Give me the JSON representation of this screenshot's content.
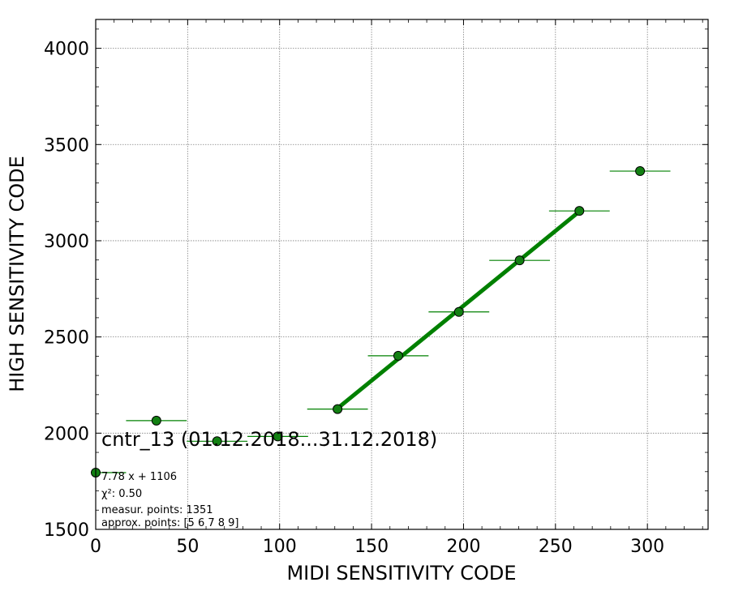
{
  "chart_data": {
    "type": "scatter",
    "title": "cntr_13 (01.12.2018...31.12.2018)",
    "xlabel": "MIDI SENSITIVITY CODE",
    "ylabel": "HIGH SENSITIVITY CODE",
    "xlim": [
      0,
      333
    ],
    "ylim": [
      1500,
      4150
    ],
    "xticks": [
      0,
      50,
      100,
      150,
      200,
      250,
      300
    ],
    "yticks": [
      1500,
      2000,
      2500,
      3000,
      3500,
      4000
    ],
    "grid": true,
    "points": [
      {
        "x": 0,
        "y": 1795,
        "xerr": 16.5
      },
      {
        "x": 33,
        "y": 2065,
        "xerr": 16.5
      },
      {
        "x": 66,
        "y": 1958,
        "xerr": 16.5
      },
      {
        "x": 99,
        "y": 1983,
        "xerr": 16.5
      },
      {
        "x": 131.5,
        "y": 2125,
        "xerr": 16.5
      },
      {
        "x": 164.5,
        "y": 2402,
        "xerr": 16.5
      },
      {
        "x": 197.5,
        "y": 2630,
        "xerr": 16.5
      },
      {
        "x": 230.5,
        "y": 2898,
        "xerr": 16.5
      },
      {
        "x": 263,
        "y": 3155,
        "xerr": 16.5
      },
      {
        "x": 296,
        "y": 3362,
        "xerr": 16.5
      }
    ],
    "fit": {
      "slope": 7.78,
      "intercept": 1106,
      "x_range": [
        131.5,
        263
      ]
    },
    "annotations": [
      "7.78 x + 1106",
      "χ²: 0.50",
      "measur. points: 1351",
      "approx. points: [5 6 7 8 9]"
    ],
    "colors": {
      "marker": "#128012",
      "line": "#008000",
      "errorbar": "#008000",
      "grid": "#808080"
    }
  }
}
